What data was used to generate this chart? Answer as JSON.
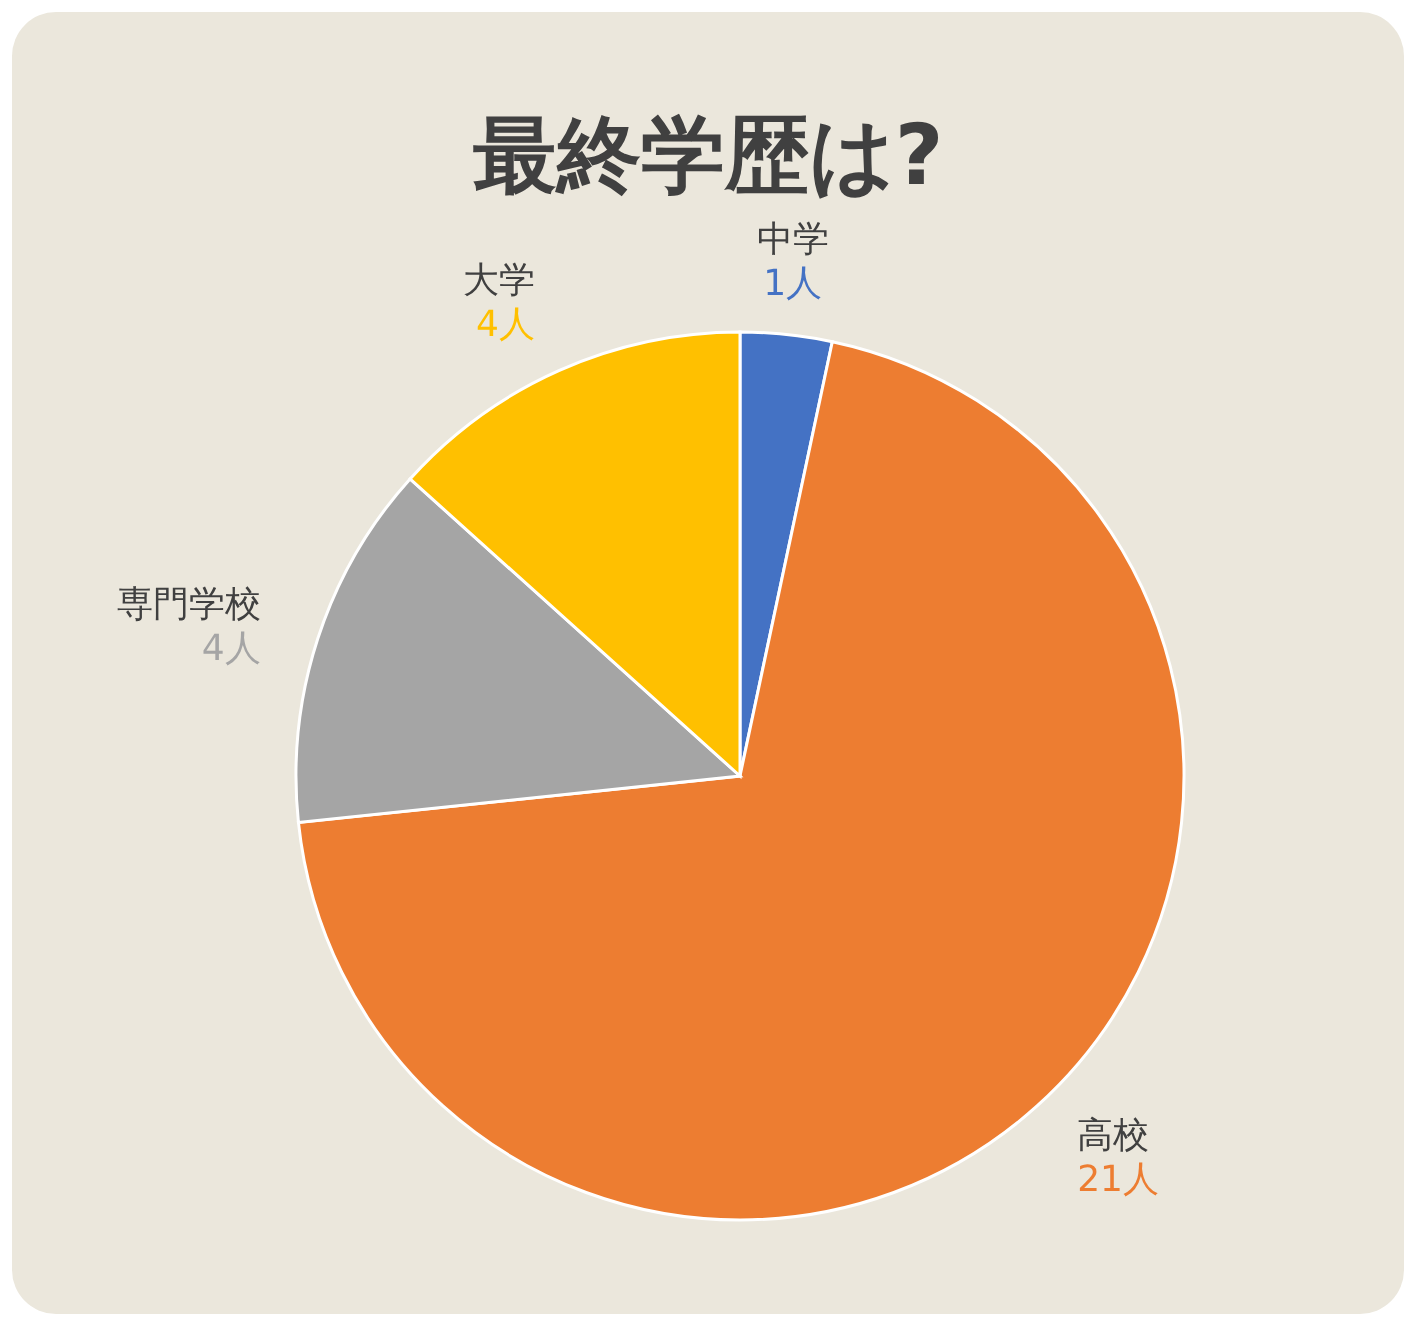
{
  "chart_data": {
    "type": "pie",
    "title": "最終学歴は?",
    "categories": [
      "中学",
      "高校",
      "専門学校",
      "大学"
    ],
    "values": [
      1,
      21,
      4,
      4
    ],
    "colors": [
      "#4472c4",
      "#ed7d31",
      "#a5a5a5",
      "#ffc000"
    ],
    "value_labels": [
      "1人",
      "21人",
      "4人",
      "4人"
    ]
  }
}
